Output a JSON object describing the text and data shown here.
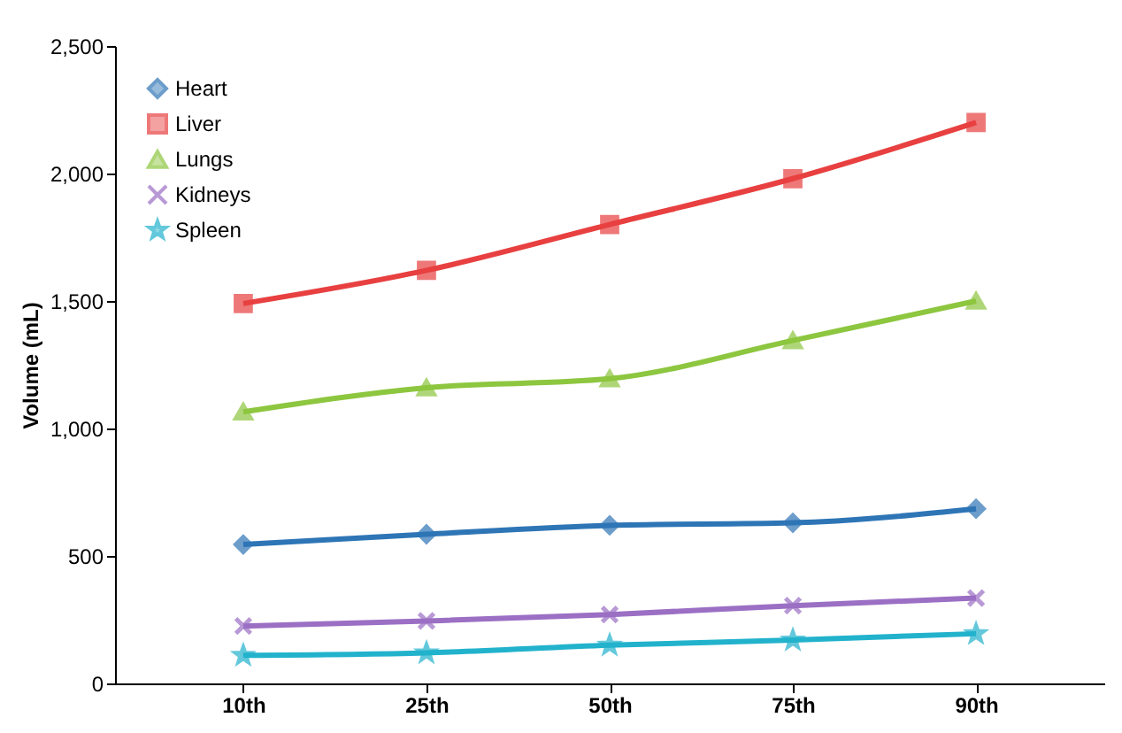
{
  "chart_data": {
    "type": "line",
    "ylabel": "Volume (mL)",
    "categories": [
      "10th",
      "25th",
      "50th",
      "75th",
      "90th"
    ],
    "series": [
      {
        "name": "Heart",
        "color": "#2e75b6",
        "marker": "diamond",
        "values": [
          545,
          585,
          620,
          630,
          685
        ]
      },
      {
        "name": "Liver",
        "color": "#e84040",
        "marker": "square",
        "values": [
          1490,
          1620,
          1800,
          1980,
          2200
        ]
      },
      {
        "name": "Lungs",
        "color": "#8dc63f",
        "marker": "triangle",
        "values": [
          1065,
          1160,
          1195,
          1345,
          1500
        ]
      },
      {
        "name": "Kidneys",
        "color": "#9b6fc4",
        "marker": "cross",
        "values": [
          225,
          245,
          270,
          305,
          335
        ]
      },
      {
        "name": "Spleen",
        "color": "#22b2cc",
        "marker": "star",
        "values": [
          110,
          120,
          150,
          170,
          195
        ]
      }
    ],
    "ylim": [
      0,
      2500
    ],
    "yticks": [
      0,
      500,
      {
        "value": 1000,
        "label": "1,000"
      },
      {
        "value": 1500,
        "label": "1,500"
      },
      {
        "value": 2000,
        "label": "2,000"
      },
      {
        "value": 2500,
        "label": "2,500"
      }
    ],
    "grid": false,
    "legend": "top left",
    "line_style": "solid"
  }
}
